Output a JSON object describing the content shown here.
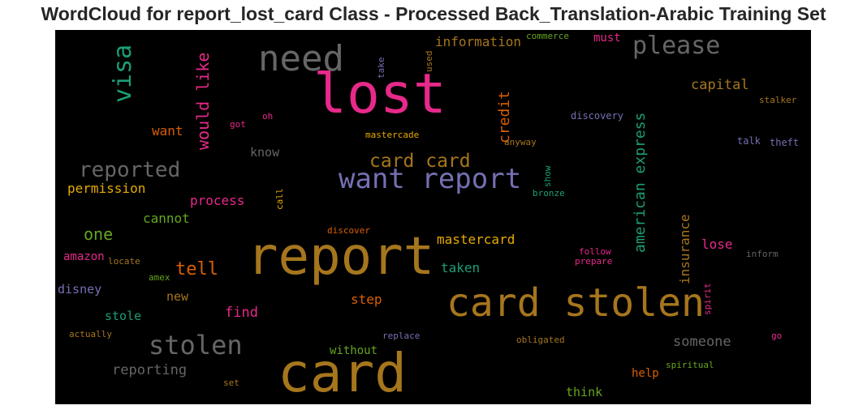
{
  "title": "WordCloud for report_lost_card Class - Processed Back_Translation-Arabic Training Set",
  "words": [
    {
      "text": "lost",
      "color": "#e7298a"
    },
    {
      "text": "report",
      "color": "#a6761d"
    },
    {
      "text": "card",
      "color": "#a6761d"
    },
    {
      "text": "card stolen",
      "color": "#a6761d"
    },
    {
      "text": "want report",
      "color": "#7570b3"
    },
    {
      "text": "need",
      "color": "#666666"
    },
    {
      "text": "please",
      "color": "#666666"
    },
    {
      "text": "reported",
      "color": "#666666"
    },
    {
      "text": "stolen",
      "color": "#666666"
    },
    {
      "text": "card card",
      "color": "#a6761d"
    },
    {
      "text": "visa",
      "color": "#1b9e77"
    },
    {
      "text": "would like",
      "color": "#e7298a"
    },
    {
      "text": "american express",
      "color": "#1b9e77"
    },
    {
      "text": "credit",
      "color": "#d95f02"
    },
    {
      "text": "information",
      "color": "#a6761d"
    },
    {
      "text": "must",
      "color": "#e7298a"
    },
    {
      "text": "capital",
      "color": "#a6761d"
    },
    {
      "text": "stalker",
      "color": "#a6761d"
    },
    {
      "text": "commerce",
      "color": "#66a61e"
    },
    {
      "text": "take",
      "color": "#7570b3"
    },
    {
      "text": "used",
      "color": "#a6761d"
    },
    {
      "text": "want",
      "color": "#d95f02"
    },
    {
      "text": "got",
      "color": "#e7298a"
    },
    {
      "text": "oh",
      "color": "#e7298a"
    },
    {
      "text": "mastercade",
      "color": "#e6ab02"
    },
    {
      "text": "anyway",
      "color": "#a6761d"
    },
    {
      "text": "discovery",
      "color": "#7570b3"
    },
    {
      "text": "talk",
      "color": "#7570b3"
    },
    {
      "text": "theft",
      "color": "#7570b3"
    },
    {
      "text": "know",
      "color": "#666666"
    },
    {
      "text": "permission",
      "color": "#e6ab02"
    },
    {
      "text": "process",
      "color": "#e7298a"
    },
    {
      "text": "call",
      "color": "#e6ab02"
    },
    {
      "text": "show",
      "color": "#1b9e77"
    },
    {
      "text": "bronze",
      "color": "#1b9e77"
    },
    {
      "text": "cannot",
      "color": "#66a61e"
    },
    {
      "text": "one",
      "color": "#66a61e"
    },
    {
      "text": "discover",
      "color": "#d95f02"
    },
    {
      "text": "mastercard",
      "color": "#e6ab02"
    },
    {
      "text": "insurance",
      "color": "#a6761d"
    },
    {
      "text": "lose",
      "color": "#e7298a"
    },
    {
      "text": "amazon",
      "color": "#e7298a"
    },
    {
      "text": "locate",
      "color": "#a6761d"
    },
    {
      "text": "tell",
      "color": "#d95f02"
    },
    {
      "text": "follow",
      "color": "#e7298a"
    },
    {
      "text": "prepare",
      "color": "#e7298a"
    },
    {
      "text": "inform",
      "color": "#666666"
    },
    {
      "text": "taken",
      "color": "#1b9e77"
    },
    {
      "text": "amex",
      "color": "#66a61e"
    },
    {
      "text": "disney",
      "color": "#7570b3"
    },
    {
      "text": "new",
      "color": "#a6761d"
    },
    {
      "text": "find",
      "color": "#e7298a"
    },
    {
      "text": "step",
      "color": "#d95f02"
    },
    {
      "text": "spirit",
      "color": "#e7298a"
    },
    {
      "text": "stole",
      "color": "#1b9e77"
    },
    {
      "text": "actually",
      "color": "#a6761d"
    },
    {
      "text": "replace",
      "color": "#7570b3"
    },
    {
      "text": "obligated",
      "color": "#a6761d"
    },
    {
      "text": "someone",
      "color": "#666666"
    },
    {
      "text": "go",
      "color": "#e7298a"
    },
    {
      "text": "without",
      "color": "#66a61e"
    },
    {
      "text": "reporting",
      "color": "#666666"
    },
    {
      "text": "help",
      "color": "#d95f02"
    },
    {
      "text": "spiritual",
      "color": "#66a61e"
    },
    {
      "text": "set",
      "color": "#a6761d"
    },
    {
      "text": "think",
      "color": "#66a61e"
    }
  ]
}
